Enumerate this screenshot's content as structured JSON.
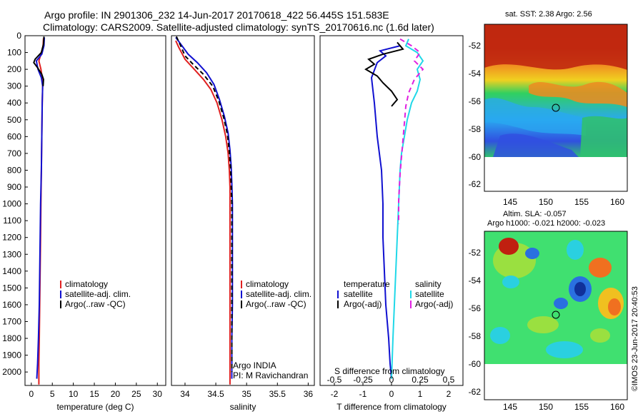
{
  "title": {
    "line1": "Argo profile: IN 2901306_232 14-Jun-2017 20170618_422 56.445S 151.583E",
    "line2": "Climatology: CARS2009. Satellite-adjusted climatology: synTS_20170616.nc (1.6d later)"
  },
  "chart_data": [
    {
      "type": "line",
      "xlabel": "temperature (deg C)",
      "ylabel": "",
      "xlim": [
        -1.5,
        32
      ],
      "ylim": [
        2080,
        0
      ],
      "xticks": [
        0,
        5,
        10,
        15,
        20,
        25,
        30
      ],
      "yticks": [
        0,
        100,
        200,
        300,
        400,
        500,
        600,
        700,
        800,
        900,
        1000,
        1100,
        1200,
        1300,
        1400,
        1500,
        1600,
        1700,
        1800,
        1900,
        2000
      ],
      "legend": [
        "climatology",
        "satellite-adj. clim.",
        "Argo(..raw -QC)"
      ],
      "legend_location": "center-right",
      "series": [
        {
          "name": "climatology",
          "color": "#e02020",
          "dash": "",
          "x": [
            2.9,
            2.8,
            2.3,
            1.8,
            2.3,
            2.6,
            2.7,
            2.6,
            2.5,
            2.4,
            2.3,
            2.2,
            2.1,
            2.0,
            1.9,
            1.8,
            1.8
          ],
          "y": [
            15,
            60,
            110,
            150,
            200,
            250,
            300,
            400,
            600,
            800,
            1000,
            1200,
            1400,
            1600,
            1800,
            1950,
            2075
          ]
        },
        {
          "name": "satellite-adj. clim.",
          "color": "#1010d0",
          "dash": "",
          "x": [
            3.1,
            3.0,
            2.5,
            1.2,
            1.6,
            2.4,
            2.7,
            2.6,
            2.5,
            2.4,
            2.2,
            2.1,
            2.0,
            1.9,
            1.7,
            1.5,
            1.3
          ],
          "y": [
            10,
            60,
            110,
            150,
            200,
            250,
            300,
            400,
            600,
            800,
            1000,
            1200,
            1400,
            1600,
            1800,
            1950,
            2040
          ]
        },
        {
          "name": "Argo(..raw -QC)",
          "color": "#000000",
          "dash": "",
          "x": [
            3.0,
            2.9,
            2.4,
            0.9,
            0.6,
            1.5,
            2.5,
            2.9,
            2.8
          ],
          "y": [
            5,
            50,
            100,
            140,
            160,
            190,
            230,
            260,
            300
          ]
        }
      ]
    },
    {
      "type": "line",
      "xlabel": "salinity",
      "ylabel": "",
      "xlim": [
        33.78,
        36.1
      ],
      "ylim": [
        2080,
        0
      ],
      "xticks": [
        34,
        34.5,
        35,
        35.5,
        36
      ],
      "xticklabels": [
        "34",
        "34.5",
        "35",
        "35.5",
        "36"
      ],
      "legend": [
        "climatology",
        "satellite-adj. clim.",
        "Argo(..raw -QC)"
      ],
      "legend_location": "center-right",
      "annotations": [
        "Argo INDIA",
        "PI: M Ravichandran"
      ],
      "series": [
        {
          "name": "climatology",
          "color": "#e02020",
          "dash": "",
          "x": [
            33.85,
            33.9,
            34.0,
            34.15,
            34.3,
            34.42,
            34.52,
            34.6,
            34.66,
            34.7,
            34.72,
            34.73,
            34.73,
            34.73,
            34.73,
            34.73,
            34.73,
            34.73
          ],
          "y": [
            30,
            70,
            140,
            200,
            260,
            320,
            400,
            500,
            600,
            700,
            800,
            900,
            1000,
            1200,
            1400,
            1600,
            1800,
            2075
          ]
        },
        {
          "name": "satellite-adj. clim.",
          "color": "#1010d0",
          "dash": "",
          "x": [
            33.85,
            33.95,
            34.05,
            34.2,
            34.35,
            34.47,
            34.56,
            34.64,
            34.7,
            34.73,
            34.75,
            34.76,
            34.77,
            34.77,
            34.77,
            34.77,
            34.76,
            34.76
          ],
          "y": [
            10,
            60,
            110,
            160,
            220,
            290,
            380,
            480,
            580,
            680,
            780,
            880,
            1000,
            1200,
            1400,
            1600,
            1800,
            2040
          ]
        },
        {
          "name": "Argo(..raw -QC)",
          "color": "#000000",
          "dash": "6,4",
          "x": [
            33.86,
            33.93,
            34.0,
            34.13,
            34.3,
            34.45,
            34.55,
            34.63,
            34.69,
            34.72,
            34.74,
            34.75,
            34.76,
            34.76,
            34.76,
            34.76,
            34.76,
            34.76
          ],
          "y": [
            5,
            60,
            120,
            170,
            230,
            300,
            390,
            490,
            590,
            690,
            790,
            890,
            1000,
            1200,
            1400,
            1600,
            1800,
            2000
          ]
        }
      ]
    },
    {
      "type": "line",
      "xlabel": "T difference from climatology",
      "x2label": "S difference from climatology",
      "ylabel": "",
      "xlim": [
        -2.5,
        2.5
      ],
      "ylim": [
        2080,
        0
      ],
      "xticks": [
        -2,
        -1,
        0,
        1,
        2
      ],
      "x2ticks": [
        -0.5,
        -0.25,
        0,
        0.25,
        0.5
      ],
      "x2ticklabels": [
        "-0.5",
        "-0.25",
        "0",
        "0.25",
        "0.5"
      ],
      "legend_temperature": {
        "title": "temperature",
        "items": [
          "satellite",
          "Argo(-adj)"
        ]
      },
      "legend_salinity": {
        "title": "salinity",
        "items": [
          "satellite",
          "Argo(-adj)"
        ]
      },
      "series": [
        {
          "name": "temperature satellite",
          "color": "#1010d0",
          "dash": "",
          "x": [
            0.3,
            -0.4,
            -0.2,
            -0.5,
            -0.7,
            -0.6,
            -0.5,
            -0.35,
            -0.3,
            -0.3,
            -0.25,
            -0.2,
            -0.1,
            -0.05,
            0.0
          ],
          "y": [
            60,
            90,
            120,
            160,
            250,
            400,
            600,
            800,
            1000,
            1200,
            1400,
            1600,
            1800,
            1950,
            2040
          ]
        },
        {
          "name": "temperature Argo(-adj)",
          "color": "#000000",
          "dash": "",
          "x": [
            0.2,
            0.4,
            -0.3,
            -0.8,
            -0.6,
            -0.9,
            -0.5,
            -0.3,
            0.0,
            0.2,
            0.0
          ],
          "y": [
            40,
            80,
            110,
            140,
            170,
            200,
            240,
            280,
            330,
            380,
            420
          ]
        },
        {
          "name": "salinity satellite",
          "color": "#20d8e8",
          "dash": "",
          "x": [
            0.6,
            0.5,
            0.9,
            1.1,
            0.9,
            1.0,
            0.9,
            0.7,
            0.55,
            0.45,
            0.35,
            0.3,
            0.25,
            0.2,
            0.15,
            0.1,
            0.05,
            0.0
          ],
          "y": [
            20,
            60,
            100,
            150,
            200,
            260,
            330,
            400,
            500,
            600,
            700,
            800,
            1000,
            1200,
            1400,
            1600,
            1800,
            2040
          ]
        },
        {
          "name": "salinity Argo(-adj)",
          "color": "#e020e0",
          "dash": "7,5",
          "x": [
            0.3,
            0.7,
            1.0,
            0.8,
            1.1,
            0.8,
            0.6,
            0.5,
            0.45,
            0.4,
            0.35,
            0.3,
            0.25,
            0.25
          ],
          "y": [
            20,
            60,
            100,
            150,
            200,
            260,
            340,
            420,
            520,
            620,
            720,
            820,
            980,
            1120
          ]
        }
      ]
    }
  ],
  "maps": {
    "sst": {
      "title": "sat. SST: 2.38  Argo: 2.56",
      "xticks": [
        "145",
        "150",
        "155",
        "160"
      ],
      "yticks": [
        "-52",
        "-54",
        "-56",
        "-58",
        "-60",
        "-62"
      ],
      "colors": [
        "#3050e0",
        "#2aa8f0",
        "#30d060",
        "#b0e040",
        "#f0d020",
        "#f08a20",
        "#c02810"
      ]
    },
    "sla": {
      "title": "Altim. SLA: -0.057",
      "subtitle": "Argo h1000: -0.021 h2000: -0.023",
      "xticks": [
        "145",
        "150",
        "155",
        "160"
      ],
      "yticks": [
        "-52",
        "-54",
        "-56",
        "-58",
        "-60",
        "-62"
      ],
      "colors": [
        "#10309a",
        "#2a70e0",
        "#2ad0e0",
        "#40e070",
        "#9ae040",
        "#f0c020",
        "#f07020",
        "#c02010"
      ]
    }
  },
  "credit": "©IMOS 23-Jun-2017 20:40:53"
}
